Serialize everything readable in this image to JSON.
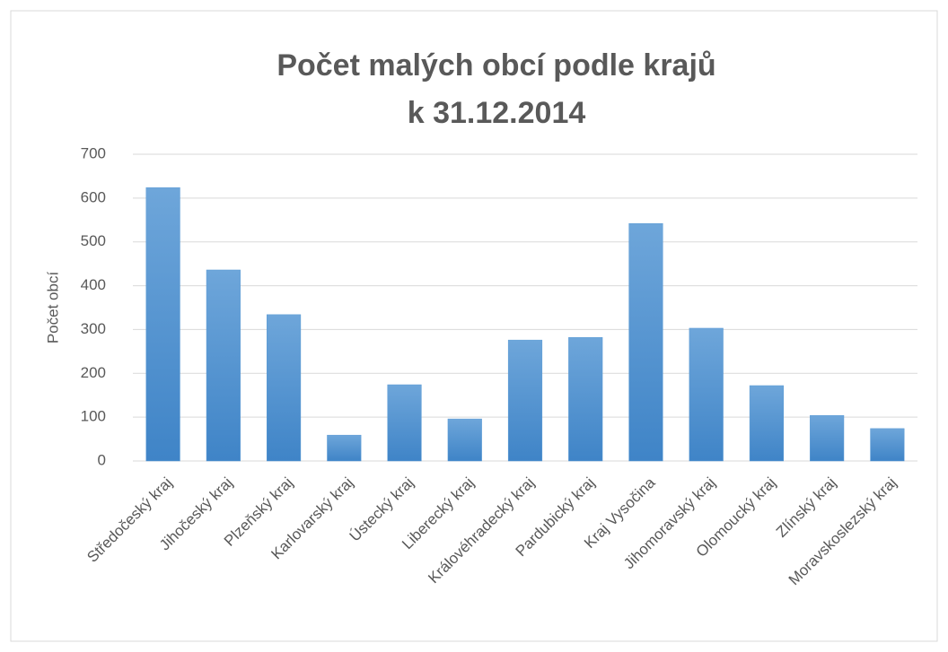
{
  "chart_data": {
    "type": "bar",
    "title": [
      "Počet malých obcí podle krajů",
      "k 31.12.2014"
    ],
    "y_label": "Počet obcí",
    "categories": [
      "Středočeský kraj",
      "Jihočeský kraj",
      "Plzeňský kraj",
      "Karlovarský kraj",
      "Ústecký kraj",
      "Liberecký kraj",
      "Královéhradecký kraj",
      "Pardubický kraj",
      "Kraj Vysočina",
      "Jihomoravský kraj",
      "Olomoucký kraj",
      "Zlínský kraj",
      "Moravskoslezský kraj"
    ],
    "values": [
      624,
      436,
      334,
      59,
      174,
      96,
      276,
      282,
      542,
      303,
      172,
      104,
      74
    ],
    "color": "#5b9bd5",
    "ylim": [
      0,
      700
    ],
    "yticks": [
      0,
      100,
      200,
      300,
      400,
      500,
      600,
      700
    ],
    "grid": true
  }
}
